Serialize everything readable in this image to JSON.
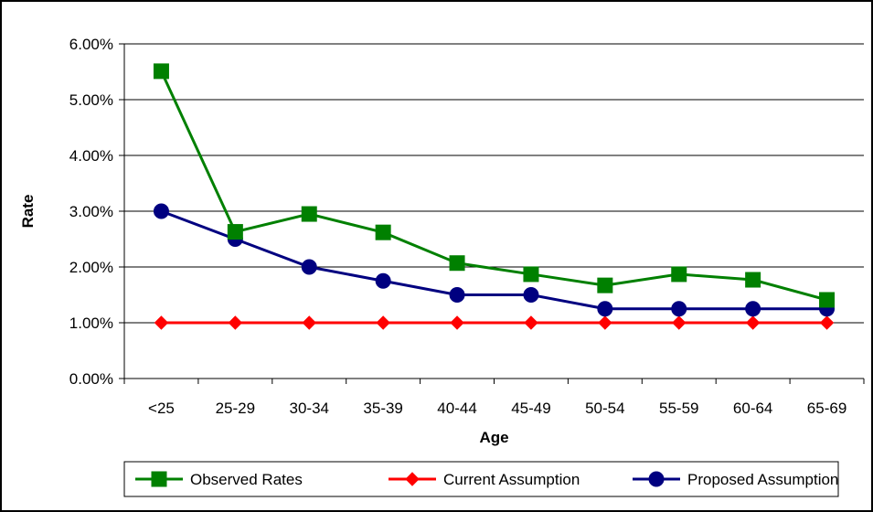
{
  "chart_data": {
    "type": "line",
    "categories": [
      "<25",
      "25-29",
      "30-34",
      "35-39",
      "40-44",
      "45-49",
      "50-54",
      "55-59",
      "60-64",
      "65-69"
    ],
    "series": [
      {
        "name": "Observed Rates",
        "color": "#008000",
        "marker": "square",
        "values": [
          0.0551,
          0.0263,
          0.0295,
          0.0262,
          0.0207,
          0.0187,
          0.0167,
          0.0187,
          0.0177,
          0.0141
        ]
      },
      {
        "name": "Current Assumption",
        "color": "#ff0000",
        "marker": "diamond",
        "values": [
          0.01,
          0.01,
          0.01,
          0.01,
          0.01,
          0.01,
          0.01,
          0.01,
          0.01,
          0.01
        ]
      },
      {
        "name": "Proposed Assumption",
        "color": "#000080",
        "marker": "circle",
        "values": [
          0.03,
          0.025,
          0.02,
          0.0175,
          0.015,
          0.015,
          0.0125,
          0.0125,
          0.0125,
          0.0125
        ]
      }
    ],
    "xlabel": "Age",
    "ylabel": "Rate",
    "ylim": [
      0,
      0.06
    ],
    "yticks": [
      "0.00%",
      "1.00%",
      "2.00%",
      "3.00%",
      "4.00%",
      "5.00%",
      "6.00%"
    ],
    "grid": true,
    "legend_position": "bottom"
  }
}
